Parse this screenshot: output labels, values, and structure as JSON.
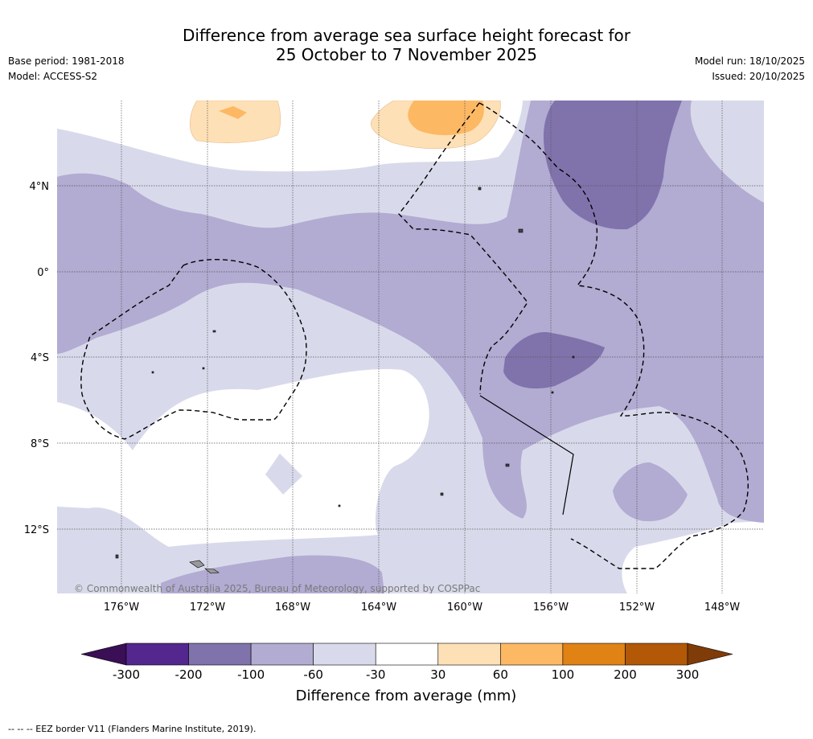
{
  "title": {
    "line1": "Difference from average sea surface height forecast for",
    "line2": "25 October to 7 November 2025"
  },
  "meta": {
    "base_period": "Base period: 1981-2018",
    "model": "Model: ACCESS-S2",
    "model_run": "Model run: 18/10/2025",
    "issued": "Issued: 20/10/2025"
  },
  "map": {
    "lat_labels": [
      "4°N",
      "0°",
      "4°S",
      "8°S",
      "12°S"
    ],
    "lon_labels": [
      "176°W",
      "172°W",
      "168°W",
      "164°W",
      "160°W",
      "156°W",
      "152°W",
      "148°W"
    ],
    "copyright": "© Commonwealth of Australia 2025, Bureau of Meteorology, supported by COSPPac"
  },
  "colorbar": {
    "ticks": [
      "-300",
      "-200",
      "-100",
      "-60",
      "-30",
      "30",
      "60",
      "100",
      "200",
      "300"
    ],
    "colors": [
      "#3a0f56",
      "#54278f",
      "#8073ac",
      "#b2abd2",
      "#d8daeb",
      "#ffffff",
      "#fee0b6",
      "#fdb863",
      "#e08214",
      "#b35806",
      "#7f3b08"
    ],
    "label": "Difference from average (mm)"
  },
  "footnote": "--  --  -- EEZ border V11 (Flanders Marine Institute, 2019)."
}
